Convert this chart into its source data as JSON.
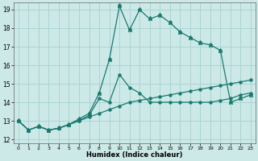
{
  "xlabel": "Humidex (Indice chaleur)",
  "xlim": [
    -0.5,
    23.5
  ],
  "ylim": [
    11.8,
    19.4
  ],
  "yticks": [
    12,
    13,
    14,
    15,
    16,
    17,
    18,
    19
  ],
  "xticks": [
    0,
    1,
    2,
    3,
    4,
    5,
    6,
    7,
    8,
    9,
    10,
    11,
    12,
    13,
    14,
    15,
    16,
    17,
    18,
    19,
    20,
    21,
    22,
    23
  ],
  "bg_color": "#cce9e8",
  "grid_color": "#aad4d2",
  "line_color": "#1a7a6e",
  "line1_x": [
    0,
    1,
    2,
    3,
    4,
    5,
    6,
    7,
    8,
    9,
    10,
    11,
    12,
    13,
    14,
    15,
    16,
    17,
    18,
    19,
    20,
    21,
    22,
    23
  ],
  "line1_y": [
    13.0,
    12.5,
    12.7,
    12.5,
    12.6,
    12.8,
    13.0,
    13.2,
    13.4,
    13.6,
    13.8,
    14.0,
    14.1,
    14.2,
    14.3,
    14.4,
    14.5,
    14.6,
    14.7,
    14.8,
    14.9,
    15.0,
    15.1,
    15.2
  ],
  "line2_x": [
    0,
    1,
    2,
    3,
    4,
    5,
    6,
    7,
    8,
    9,
    10,
    11,
    12,
    13,
    14,
    15,
    16,
    17,
    18,
    19,
    20,
    21,
    22,
    23
  ],
  "line2_y": [
    13.0,
    12.5,
    12.7,
    12.5,
    12.6,
    12.8,
    13.0,
    13.3,
    14.2,
    14.0,
    15.5,
    14.8,
    14.5,
    14.0,
    14.0,
    14.0,
    14.0,
    14.0,
    14.0,
    14.0,
    14.1,
    14.2,
    14.4,
    14.5
  ],
  "line3_x": [
    0,
    1,
    2,
    3,
    4,
    5,
    6,
    7,
    8,
    9,
    10,
    11,
    12,
    13,
    14,
    15,
    16,
    17,
    18,
    19,
    20,
    21,
    22,
    23
  ],
  "line3_y": [
    13.0,
    12.5,
    12.7,
    12.5,
    12.6,
    12.8,
    13.1,
    13.4,
    14.5,
    16.3,
    19.2,
    17.9,
    19.0,
    18.5,
    18.7,
    18.3,
    17.8,
    17.5,
    17.2,
    17.1,
    16.8,
    14.0,
    14.2,
    14.4
  ]
}
